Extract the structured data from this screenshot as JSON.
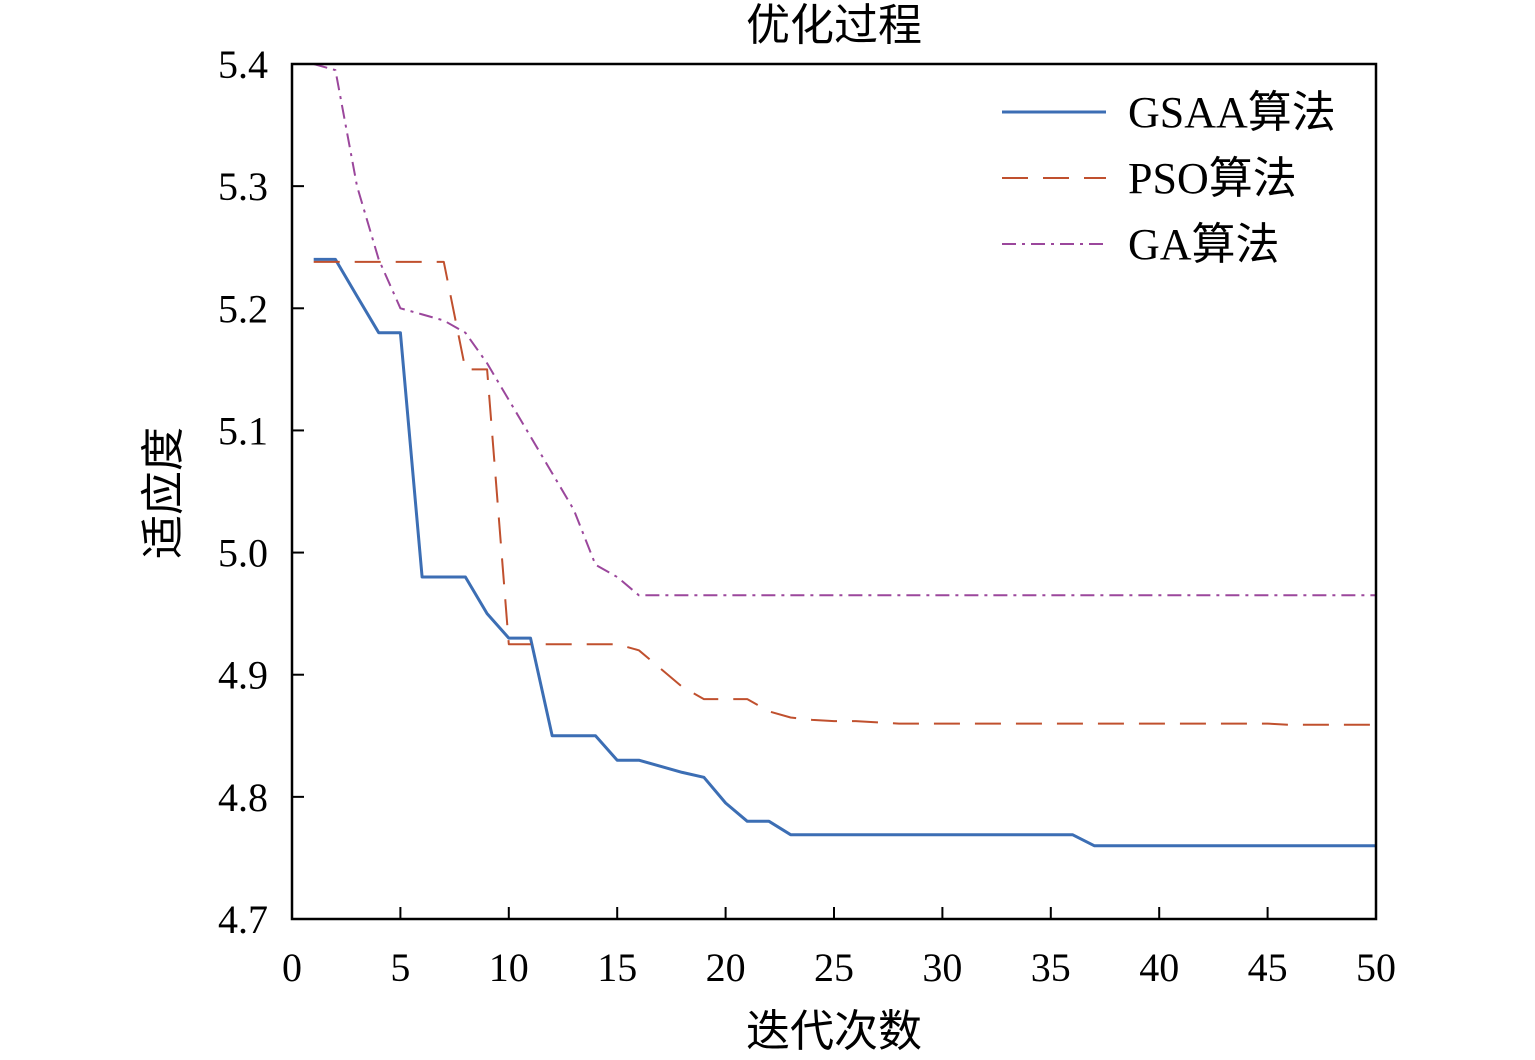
{
  "chart_data": {
    "type": "line",
    "title": "优化过程",
    "xlabel": "迭代次数",
    "ylabel": "适应度",
    "xlim": [
      0,
      50
    ],
    "ylim": [
      4.7,
      5.4
    ],
    "xticks": [
      "0",
      "5",
      "10",
      "15",
      "20",
      "25",
      "30",
      "35",
      "40",
      "45",
      "50"
    ],
    "yticks": [
      "4.7",
      "4.8",
      "4.9",
      "5.0",
      "5.1",
      "5.2",
      "5.3",
      "5.4"
    ],
    "grid": false,
    "legend_position": "top-right",
    "series": [
      {
        "name": "GSAA算法",
        "color": "#3c6eb4",
        "style": "solid",
        "x": [
          1,
          2,
          3,
          4,
          5,
          6,
          7,
          8,
          9,
          10,
          11,
          12,
          13,
          14,
          15,
          16,
          17,
          18,
          19,
          20,
          21,
          22,
          23,
          24,
          25,
          26,
          27,
          28,
          29,
          30,
          31,
          32,
          33,
          34,
          35,
          36,
          37,
          38,
          39,
          40,
          41,
          42,
          43,
          44,
          45,
          46,
          47,
          48,
          49,
          50
        ],
        "values": [
          5.24,
          5.24,
          5.21,
          5.18,
          5.18,
          4.98,
          4.98,
          4.98,
          4.95,
          4.93,
          4.93,
          4.85,
          4.85,
          4.85,
          4.83,
          4.83,
          4.825,
          4.82,
          4.816,
          4.795,
          4.78,
          4.78,
          4.769,
          4.769,
          4.769,
          4.769,
          4.769,
          4.769,
          4.769,
          4.769,
          4.769,
          4.769,
          4.769,
          4.769,
          4.769,
          4.769,
          4.76,
          4.76,
          4.76,
          4.76,
          4.76,
          4.76,
          4.76,
          4.76,
          4.76,
          4.76,
          4.76,
          4.76,
          4.76,
          4.76
        ]
      },
      {
        "name": "PSO算法",
        "color": "#c0502e",
        "style": "dashed",
        "x": [
          1,
          2,
          3,
          4,
          5,
          6,
          7,
          8,
          9,
          10,
          11,
          12,
          13,
          14,
          15,
          16,
          17,
          18,
          19,
          20,
          21,
          22,
          23,
          24,
          25,
          26,
          27,
          28,
          29,
          30,
          31,
          32,
          33,
          34,
          35,
          36,
          37,
          38,
          39,
          40,
          41,
          42,
          43,
          44,
          45,
          46,
          47,
          48,
          49,
          50
        ],
        "values": [
          5.238,
          5.238,
          5.238,
          5.238,
          5.238,
          5.238,
          5.238,
          5.15,
          5.15,
          4.925,
          4.925,
          4.925,
          4.925,
          4.925,
          4.925,
          4.92,
          4.905,
          4.89,
          4.88,
          4.88,
          4.88,
          4.87,
          4.865,
          4.863,
          4.862,
          4.862,
          4.861,
          4.86,
          4.86,
          4.86,
          4.86,
          4.86,
          4.86,
          4.86,
          4.86,
          4.86,
          4.86,
          4.86,
          4.86,
          4.86,
          4.86,
          4.86,
          4.86,
          4.86,
          4.86,
          4.859,
          4.859,
          4.859,
          4.859,
          4.859
        ]
      },
      {
        "name": "GA算法",
        "color": "#9b479c",
        "style": "dashdot",
        "x": [
          1,
          2,
          3,
          4,
          5,
          6,
          7,
          8,
          9,
          10,
          11,
          12,
          13,
          14,
          15,
          16,
          17,
          18,
          19,
          20,
          21,
          22,
          23,
          24,
          25,
          26,
          27,
          28,
          29,
          30,
          31,
          32,
          33,
          34,
          35,
          36,
          37,
          38,
          39,
          40,
          41,
          42,
          43,
          44,
          45,
          46,
          47,
          48,
          49,
          50
        ],
        "values": [
          5.4,
          5.395,
          5.3,
          5.24,
          5.2,
          5.195,
          5.19,
          5.18,
          5.155,
          5.125,
          5.095,
          5.065,
          5.035,
          4.99,
          4.98,
          4.965,
          4.965,
          4.965,
          4.965,
          4.965,
          4.965,
          4.965,
          4.965,
          4.965,
          4.965,
          4.965,
          4.965,
          4.965,
          4.965,
          4.965,
          4.965,
          4.965,
          4.965,
          4.965,
          4.965,
          4.965,
          4.965,
          4.965,
          4.965,
          4.965,
          4.965,
          4.965,
          4.965,
          4.965,
          4.965,
          4.965,
          4.965,
          4.965,
          4.965,
          4.965
        ]
      }
    ]
  }
}
